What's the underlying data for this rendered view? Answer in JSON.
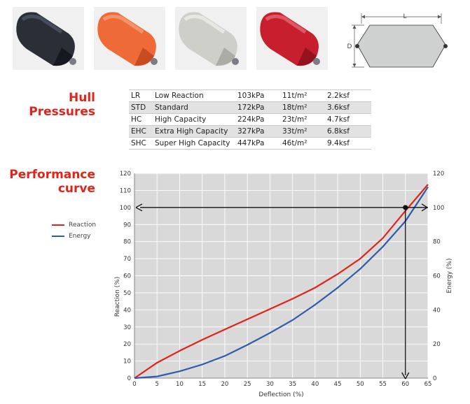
{
  "fenders": [
    {
      "name": "black",
      "color": "#2a2e37",
      "shade": "#0d0f14"
    },
    {
      "name": "orange",
      "color": "#ee6a37",
      "shade": "#b7401a"
    },
    {
      "name": "grey",
      "color": "#cfcfca",
      "shade": "#9c9c98"
    },
    {
      "name": "red",
      "color": "#c71f2e",
      "shade": "#800e18"
    }
  ],
  "dimension_diagram": {
    "length_label": "L",
    "diameter_label": "D"
  },
  "hull": {
    "title_line1": "Hull",
    "title_line2": "Pressures",
    "rows": [
      {
        "code": "LR",
        "name": "Low Reaction",
        "kpa": "103kPa",
        "tm2": "11t/m²",
        "ksf": "2.2ksf"
      },
      {
        "code": "STD",
        "name": "Standard",
        "kpa": "172kPa",
        "tm2": "18t/m²",
        "ksf": "3.6ksf"
      },
      {
        "code": "HC",
        "name": "High Capacity",
        "kpa": "224kPa",
        "tm2": "23t/m²",
        "ksf": "4.7ksf"
      },
      {
        "code": "EHC",
        "name": "Extra High Capacity",
        "kpa": "327kPa",
        "tm2": "33t/m²",
        "ksf": "6.8ksf"
      },
      {
        "code": "SHC",
        "name": "Super High Capacity",
        "kpa": "447kPa",
        "tm2": "46t/m²",
        "ksf": "9.4ksf"
      }
    ]
  },
  "performance": {
    "title_line1": "Performance",
    "title_line2": "curve"
  },
  "legend": [
    {
      "label": "Reaction",
      "color": "#e2231a"
    },
    {
      "label": "Energy",
      "color": "#2e5caa"
    }
  ],
  "chart_data": {
    "type": "line",
    "xlabel": "Deflection (%)",
    "ylabel": "Reaction (%)",
    "y2label": "Energy (%)",
    "xlim": [
      0,
      65
    ],
    "ylim": [
      0,
      120
    ],
    "y2lim": [
      0,
      120
    ],
    "xticks": [
      0,
      5,
      10,
      15,
      20,
      25,
      30,
      35,
      40,
      45,
      50,
      55,
      60,
      65
    ],
    "yticks": [
      0,
      10,
      20,
      30,
      40,
      50,
      60,
      70,
      80,
      90,
      100,
      110,
      120
    ],
    "y2ticks": [
      0,
      20,
      40,
      60,
      80,
      100,
      120
    ],
    "grid": true,
    "background": "#d9d9d9",
    "series": [
      {
        "name": "Reaction",
        "axis": "left",
        "color": "#e2231a",
        "x": [
          0,
          5,
          10,
          15,
          20,
          25,
          30,
          35,
          40,
          45,
          50,
          55,
          60,
          65
        ],
        "y": [
          0,
          9,
          16,
          22.5,
          28.5,
          34.5,
          40.5,
          46.5,
          53,
          61,
          70,
          82,
          98,
          113.5
        ]
      },
      {
        "name": "Energy",
        "axis": "right",
        "color": "#2e5caa",
        "x": [
          0,
          5,
          10,
          15,
          20,
          25,
          30,
          35,
          40,
          45,
          50,
          55,
          60,
          65
        ],
        "y": [
          0,
          1,
          4,
          8,
          13,
          19.5,
          26.5,
          34,
          43,
          53,
          64,
          77,
          92,
          112
        ]
      }
    ],
    "annotations": [
      {
        "kind": "point",
        "axis": "left",
        "x": 60,
        "y": 100
      },
      {
        "kind": "point",
        "axis": "right",
        "x": 60,
        "y": 100
      }
    ]
  }
}
